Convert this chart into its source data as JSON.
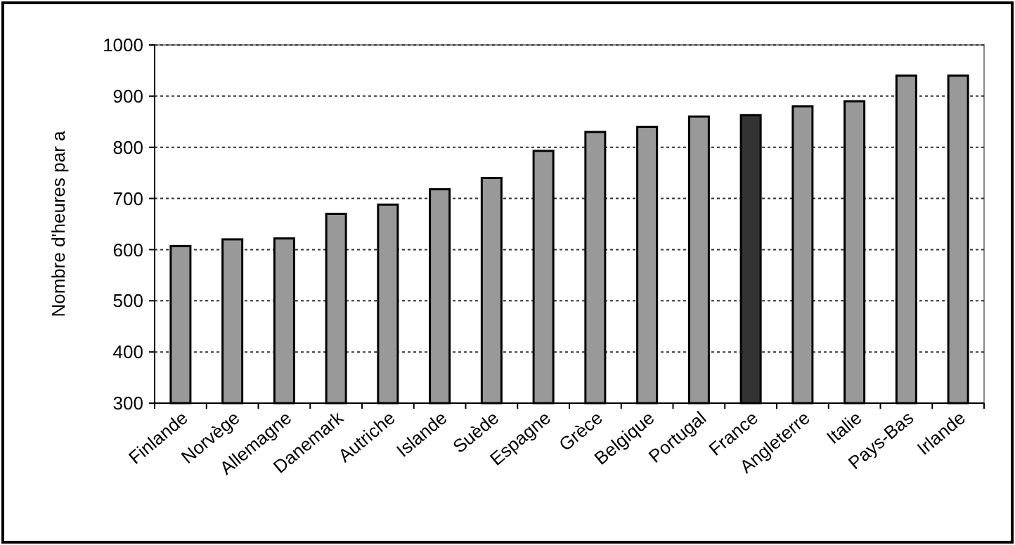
{
  "chart_data": {
    "type": "bar",
    "ylabel": "Nombre d'heures par a",
    "categories": [
      "Finlande",
      "Norvège",
      "Allemagne",
      "Danemark",
      "Autriche",
      "Islande",
      "Suède",
      "Espagne",
      "Grèce",
      "Belgique",
      "Portugal",
      "France",
      "Angleterre",
      "Italie",
      "Pays-Bas",
      "Irlande"
    ],
    "values": [
      607,
      620,
      622,
      670,
      688,
      718,
      740,
      793,
      830,
      840,
      860,
      863,
      880,
      890,
      940,
      940
    ],
    "colors": [
      "#999999",
      "#999999",
      "#999999",
      "#999999",
      "#999999",
      "#999999",
      "#999999",
      "#999999",
      "#999999",
      "#999999",
      "#999999",
      "#333333",
      "#999999",
      "#999999",
      "#999999",
      "#999999"
    ],
    "ylim": [
      300,
      1000
    ],
    "yticks": [
      300,
      400,
      500,
      600,
      700,
      800,
      900,
      1000
    ],
    "grid": "y"
  }
}
